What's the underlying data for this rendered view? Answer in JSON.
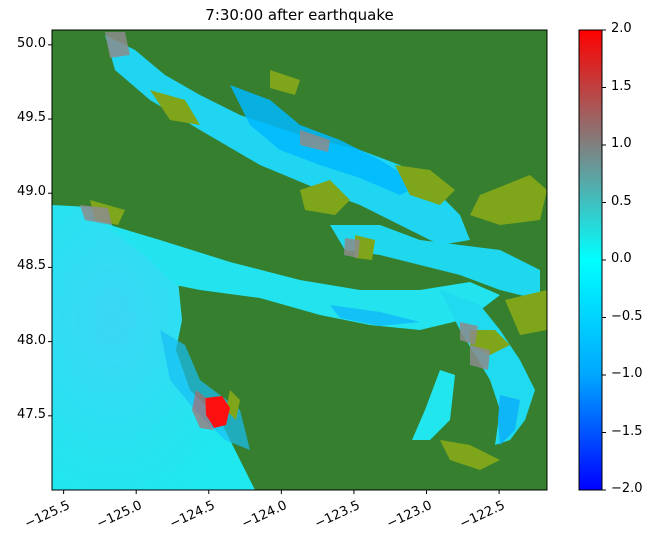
{
  "title": "7:30:00 after earthquake",
  "map": {
    "xlim": [
      -125.58,
      -122.17
    ],
    "ylim": [
      47.0,
      50.1
    ],
    "xticks": [
      "−125.5",
      "−125.0",
      "−124.5",
      "−124.0",
      "−123.5",
      "−123.0",
      "−122.5"
    ],
    "xtick_values": [
      -125.5,
      -125.0,
      -124.5,
      -124.0,
      -123.5,
      -123.0,
      -122.5
    ],
    "yticks": [
      "50.0",
      "49.5",
      "49.0",
      "48.5",
      "48.0",
      "47.5"
    ],
    "ytick_values": [
      50.0,
      49.5,
      49.0,
      48.5,
      48.0,
      47.5
    ],
    "land_color": "#357f2f",
    "vegetation_color": "#7fa51b",
    "water_color": "#22e0ee"
  },
  "colorbar": {
    "min": -2.0,
    "max": 2.0,
    "ticks": [
      "2.0",
      "1.5",
      "1.0",
      "0.5",
      "0.0",
      "−0.5",
      "−1.0",
      "−1.5",
      "−2.0"
    ],
    "tick_values": [
      2.0,
      1.5,
      1.0,
      0.5,
      0.0,
      -0.5,
      -1.0,
      -1.5,
      -2.0
    ],
    "colors": [
      "#0000ff",
      "#00b2ff",
      "#00ffff",
      "#7f7f7f",
      "#ff0000"
    ]
  }
}
